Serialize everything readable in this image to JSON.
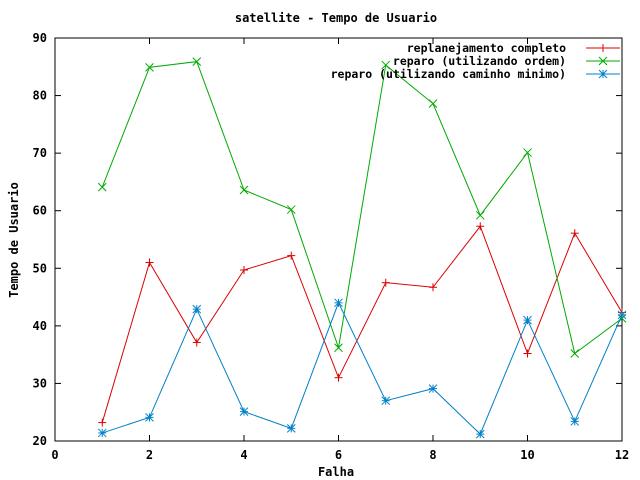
{
  "chart_data": {
    "type": "line",
    "title": "satellite - Tempo de Usuario",
    "xlabel": "Falha",
    "ylabel": "Tempo de Usuario",
    "xlim": [
      0,
      12
    ],
    "ylim": [
      20,
      90
    ],
    "xticks": [
      0,
      2,
      4,
      6,
      8,
      10,
      12
    ],
    "yticks": [
      20,
      30,
      40,
      50,
      60,
      70,
      80,
      90
    ],
    "grid": false,
    "legend_position": "top-right",
    "x": [
      1,
      2,
      3,
      4,
      5,
      6,
      7,
      8,
      9,
      10,
      11,
      12
    ],
    "series": [
      {
        "name": "replanejamento completo",
        "color": "#dd0000",
        "marker": "plus",
        "values": [
          23.2,
          51.0,
          37.1,
          49.7,
          52.2,
          31.0,
          47.5,
          46.7,
          57.3,
          35.2,
          56.1,
          42.3
        ]
      },
      {
        "name": "reparo (utilizando ordem)",
        "color": "#00aa00",
        "marker": "cross",
        "values": [
          64.1,
          84.9,
          85.9,
          63.6,
          60.2,
          36.2,
          85.3,
          78.6,
          59.2,
          70.1,
          35.2,
          41.3
        ]
      },
      {
        "name": "reparo (utilizando caminho minimo)",
        "color": "#0080c8",
        "marker": "star",
        "values": [
          21.4,
          24.1,
          42.9,
          25.1,
          22.2,
          44.0,
          27.0,
          29.1,
          21.2,
          41.0,
          23.4,
          41.9
        ]
      }
    ]
  }
}
